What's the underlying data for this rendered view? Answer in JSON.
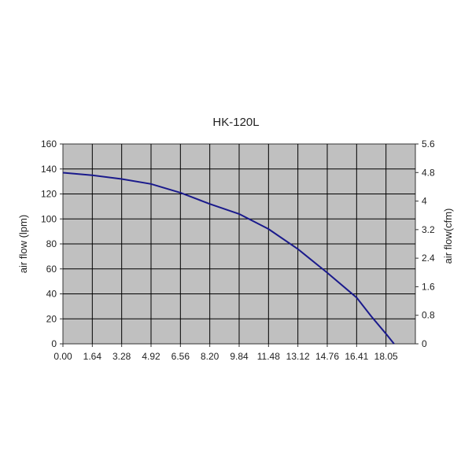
{
  "chart_data": {
    "type": "line",
    "title": "HK-120L",
    "xlabel": "",
    "ylabel": "air flow (lpm)",
    "y2label": "air flow(cfm)",
    "x_ticks": [
      "0.00",
      "1.64",
      "3.28",
      "4.92",
      "6.56",
      "8.20",
      "9.84",
      "11.48",
      "13.12",
      "14.76",
      "16.41",
      "18.05"
    ],
    "x_range": [
      0,
      19.69
    ],
    "y_ticks": [
      "0",
      "20",
      "40",
      "60",
      "80",
      "100",
      "120",
      "140",
      "160"
    ],
    "ylim": [
      0,
      160
    ],
    "y2_ticks": [
      "0",
      "0.8",
      "1.6",
      "2.4",
      "3.2",
      "4",
      "4.8",
      "5.6"
    ],
    "y2lim": [
      0,
      5.6
    ],
    "grid": true,
    "plot_background": "#c0c0c0",
    "series": [
      {
        "color": "#1a1a8c",
        "x": [
          0.0,
          1.64,
          3.28,
          4.92,
          6.56,
          8.2,
          9.84,
          11.48,
          13.12,
          14.76,
          16.41,
          17.23,
          18.05,
          18.5
        ],
        "y": [
          137,
          135,
          132,
          128,
          121,
          112,
          104,
          92,
          76,
          57,
          37,
          22,
          8,
          0
        ]
      }
    ]
  }
}
